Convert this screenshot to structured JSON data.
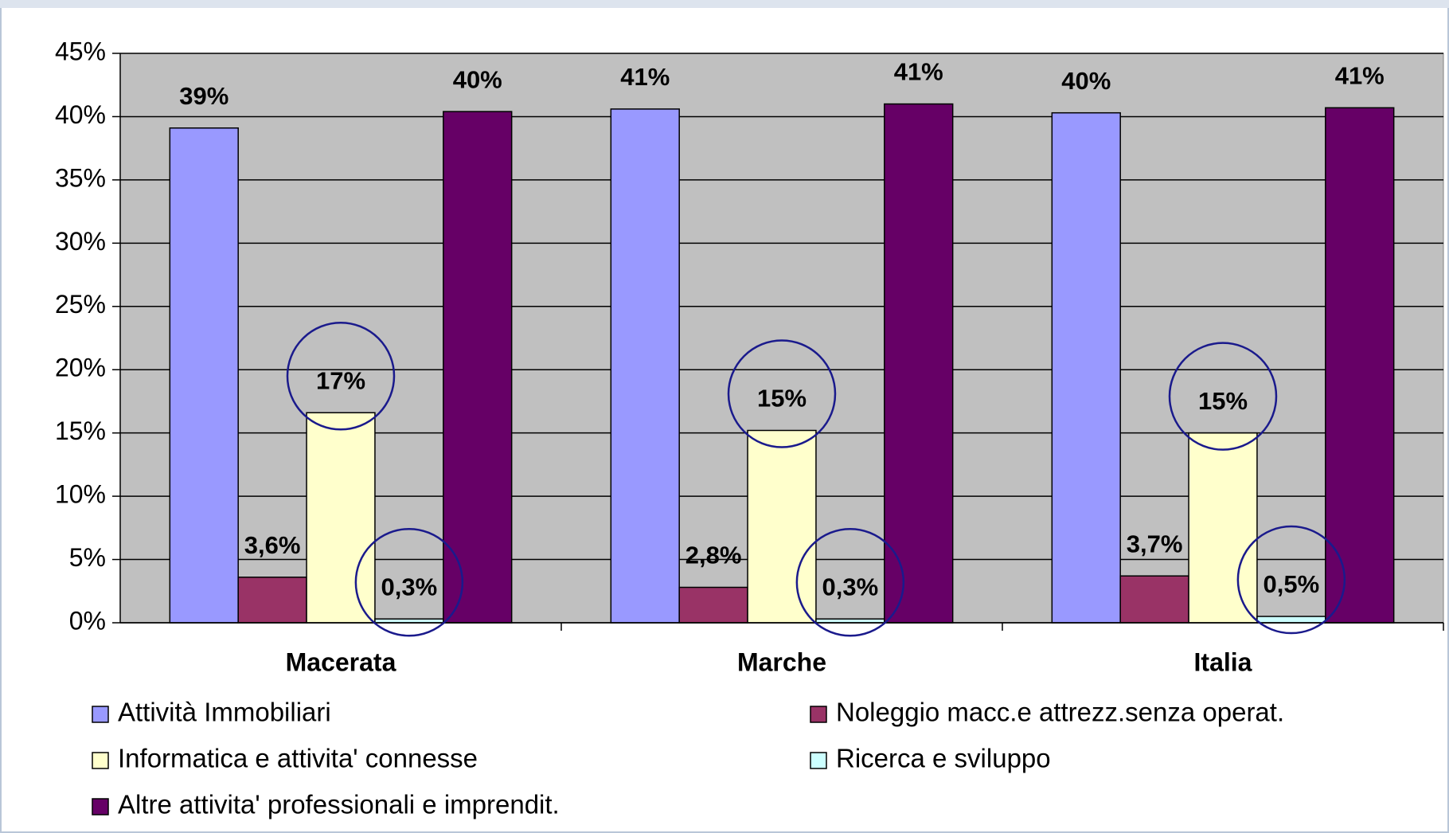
{
  "chart_data": {
    "type": "bar",
    "categories": [
      "Macerata",
      "Marche",
      "Italia"
    ],
    "series": [
      {
        "name": "Attività Immobiliari",
        "color": "#9999ff",
        "values": [
          39.1,
          40.6,
          40.3
        ],
        "value_labels": [
          "39%",
          "41%",
          "40%"
        ]
      },
      {
        "name": "Noleggio macc.e attrezz.senza operat.",
        "color": "#993366",
        "values": [
          3.6,
          2.8,
          3.7
        ],
        "value_labels": [
          "3,6%",
          "2,8%",
          "3,7%"
        ]
      },
      {
        "name": "Informatica e attivita' connesse",
        "color": "#ffffcc",
        "values": [
          16.6,
          15.2,
          15.0
        ],
        "value_labels": [
          "17%",
          "15%",
          "15%"
        ],
        "highlight": true
      },
      {
        "name": "Ricerca e sviluppo",
        "color": "#ccffff",
        "values": [
          0.3,
          0.3,
          0.5
        ],
        "value_labels": [
          "0,3%",
          "0,3%",
          "0,5%"
        ],
        "highlight": true
      },
      {
        "name": "Altre attivita' professionali e imprendit.",
        "color": "#660066",
        "values": [
          40.4,
          41.0,
          40.7
        ],
        "value_labels": [
          "40%",
          "41%",
          "41%"
        ]
      }
    ],
    "ylim": [
      0,
      45
    ],
    "yticks": [
      {
        "value": 0,
        "label": "0%"
      },
      {
        "value": 5,
        "label": "5%"
      },
      {
        "value": 10,
        "label": "10%"
      },
      {
        "value": 15,
        "label": "15%"
      },
      {
        "value": 20,
        "label": "20%"
      },
      {
        "value": 25,
        "label": "25%"
      },
      {
        "value": 30,
        "label": "30%"
      },
      {
        "value": 35,
        "label": "35%"
      },
      {
        "value": 40,
        "label": "40%"
      },
      {
        "value": 45,
        "label": "45%"
      }
    ],
    "plot_background": "#c0c0c0"
  }
}
